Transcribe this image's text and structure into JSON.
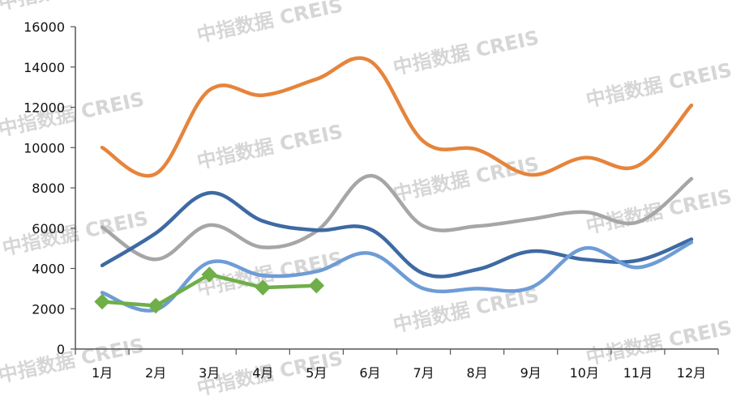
{
  "chart_data": {
    "type": "line",
    "title": "",
    "xlabel": "",
    "ylabel": "",
    "categories": [
      "1月",
      "2月",
      "3月",
      "4月",
      "5月",
      "6月",
      "7月",
      "8月",
      "9月",
      "10月",
      "11月",
      "12月"
    ],
    "ylim": [
      0,
      16000
    ],
    "y_ticks": [
      "0",
      "2000",
      "4000",
      "6000",
      "8000",
      "10000",
      "12000",
      "14000",
      "16000"
    ],
    "grid": false,
    "legend": "none",
    "series": [
      {
        "color": "#E6843C",
        "smooth": true,
        "values": [
          10000,
          8700,
          12850,
          12600,
          13400,
          14300,
          10300,
          9900,
          8650,
          9500,
          9100,
          12100
        ]
      },
      {
        "color": "#A6A6A6",
        "smooth": true,
        "values": [
          6050,
          4450,
          6150,
          5050,
          5850,
          8600,
          6100,
          6100,
          6450,
          6800,
          6300,
          8450
        ]
      },
      {
        "color": "#3E6AA3",
        "smooth": true,
        "values": [
          4150,
          5750,
          7750,
          6350,
          5900,
          5950,
          3750,
          3950,
          4850,
          4450,
          4400,
          5450
        ]
      },
      {
        "color": "#6E9CD6",
        "smooth": true,
        "values": [
          2800,
          1950,
          4300,
          3650,
          3850,
          4750,
          3000,
          3000,
          3050,
          5000,
          4050,
          5300
        ]
      },
      {
        "color": "#6FAE48",
        "smooth": false,
        "marker": "diamond",
        "values": [
          2350,
          2150,
          3700,
          3050,
          3150,
          null,
          null,
          null,
          null,
          null,
          null,
          null
        ]
      }
    ]
  },
  "watermark": {
    "text": "中指数据 CREIS"
  }
}
